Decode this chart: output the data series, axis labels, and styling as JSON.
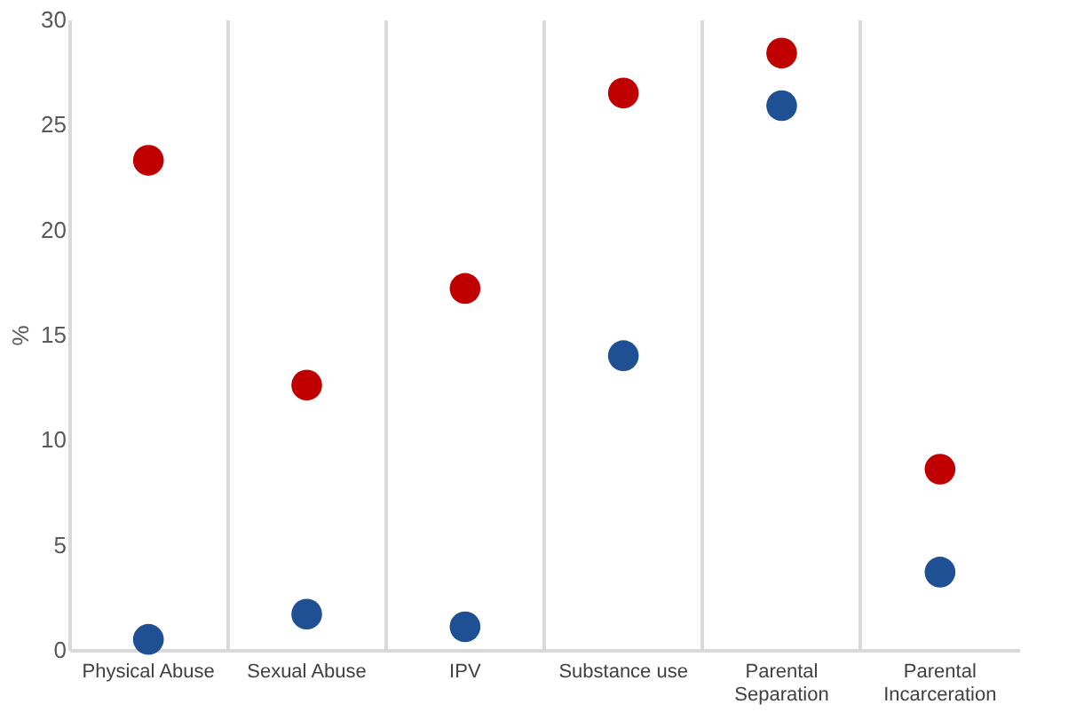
{
  "chart_data": {
    "type": "scatter",
    "ylabel": "%",
    "categories": [
      "Physical Abuse",
      "Sexual Abuse",
      "IPV",
      "Substance use",
      "Parental Separation",
      "Parental Incarceration"
    ],
    "series": [
      {
        "color": "#c00000",
        "values": [
          23.3,
          12.6,
          17.2,
          26.5,
          28.4,
          8.6
        ]
      },
      {
        "color": "#1f5094",
        "values": [
          0.5,
          1.7,
          1.1,
          14.0,
          25.9,
          3.7
        ]
      }
    ],
    "ylim": [
      0,
      30
    ],
    "yticks": [
      0,
      5,
      10,
      15,
      20,
      25,
      30
    ],
    "grid": "x",
    "legend": false,
    "marker": "circle"
  }
}
